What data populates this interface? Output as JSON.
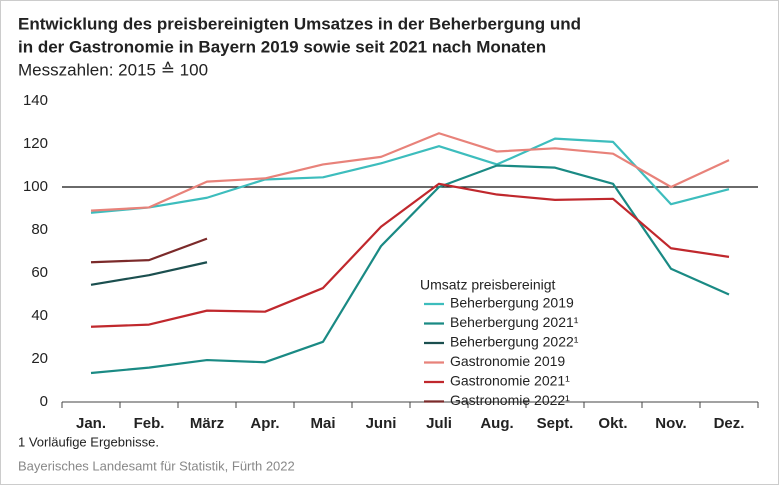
{
  "chart_data": {
    "type": "line",
    "title_lines": [
      "Entwicklung des preisbereinigten Umsatzes in der Beherbergung und",
      "in der Gastronomie in Bayern 2019 sowie seit 2021 nach Monaten"
    ],
    "subtitle": "Messzahlen: 2015 ≙ 100",
    "categories": [
      "Jan.",
      "Feb.",
      "März",
      "Apr.",
      "Mai",
      "Juni",
      "Juli",
      "Aug.",
      "Sept.",
      "Okt.",
      "Nov.",
      "Dez."
    ],
    "ylim": [
      0,
      140
    ],
    "yticks": [
      0,
      20,
      40,
      60,
      80,
      100,
      120,
      140
    ],
    "reference_line": 100,
    "legend_title": "Umsatz preisbereinigt",
    "series": [
      {
        "name": "Beherbergung 2019",
        "color": "#3dbdbd",
        "values": [
          88,
          90.5,
          95,
          103.5,
          104.5,
          111,
          119,
          110.5,
          122.5,
          121,
          92,
          99
        ]
      },
      {
        "name": "Beherbergung 2021¹",
        "color": "#1a8a84",
        "values": [
          13.5,
          16,
          19.5,
          18.5,
          28,
          72.5,
          100,
          110,
          109,
          101.5,
          62,
          50
        ]
      },
      {
        "name": "Beherbergung 2022¹",
        "color": "#1b4f4f",
        "values": [
          54.5,
          59,
          65,
          null,
          null,
          null,
          null,
          null,
          null,
          null,
          null,
          null
        ]
      },
      {
        "name": "Gastronomie 2019",
        "color": "#e8827a",
        "values": [
          89,
          90.5,
          102.5,
          104,
          110.5,
          114,
          125,
          116.5,
          118,
          115.5,
          100,
          112.5
        ]
      },
      {
        "name": "Gastronomie 2021¹",
        "color": "#c0282d",
        "values": [
          35,
          36,
          42.5,
          42,
          53,
          81.5,
          101.5,
          96.5,
          94,
          94.5,
          71.5,
          67.5
        ]
      },
      {
        "name": "Gastronomie 2022¹",
        "color": "#7b2a2a",
        "values": [
          65,
          66,
          76,
          null,
          null,
          null,
          null,
          null,
          null,
          null,
          null,
          null
        ]
      }
    ],
    "footnote": "1  Vorläufige Ergebnisse.",
    "source": "Bayerisches Landesamt für Statistik, Fürth 2022"
  }
}
